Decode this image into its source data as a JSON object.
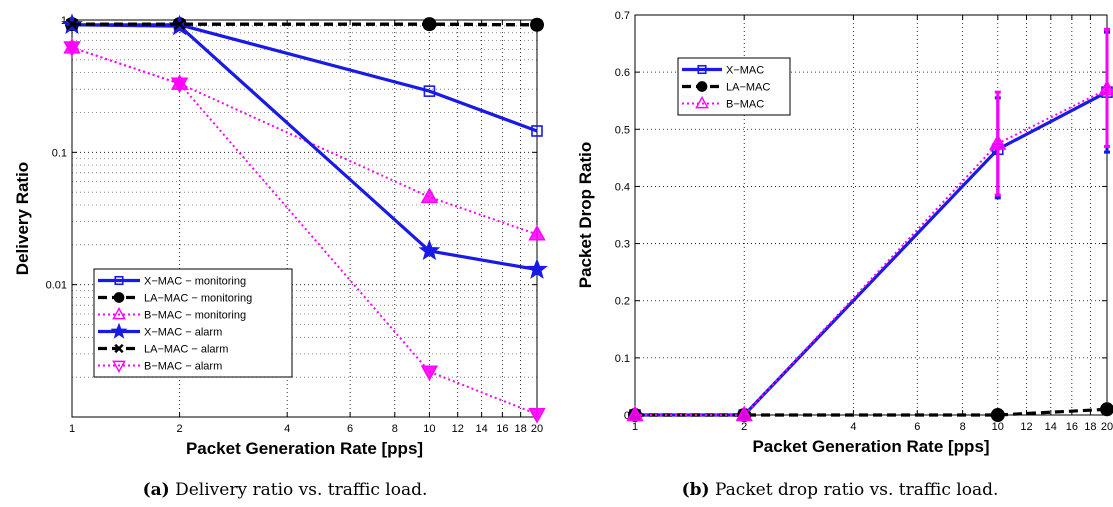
{
  "chart_data": [
    {
      "type": "line",
      "caption_label": "(a)",
      "caption_text": "Delivery ratio vs. traffic load.",
      "xlabel": "Packet Generation Rate [pps]",
      "ylabel": "Delivery Ratio",
      "xscale": "log",
      "yscale": "log",
      "xlim": [
        1,
        20
      ],
      "ylim": [
        0.001,
        1
      ],
      "grid": true,
      "legend_position": "bottom-left",
      "xticks": [
        1,
        2,
        4,
        6,
        8,
        10,
        12,
        14,
        16,
        18,
        20
      ],
      "xticklabels": [
        "1",
        "2",
        "4",
        "6",
        "8",
        "10",
        "12",
        "14",
        "16",
        "18",
        "20"
      ],
      "yticks": [
        1,
        0.1,
        0.01
      ],
      "yticklabels": [
        "1",
        "0.1",
        "0.01"
      ],
      "series": [
        {
          "name": "X−MAC − monitoring",
          "x": [
            1,
            2,
            10,
            20
          ],
          "y": [
            0.92,
            0.92,
            0.29,
            0.145
          ],
          "color": "#1a1ae6",
          "style": "solid",
          "marker": "square"
        },
        {
          "name": "LA−MAC − monitoring",
          "x": [
            1,
            2,
            10,
            20
          ],
          "y": [
            0.93,
            0.93,
            0.93,
            0.92
          ],
          "color": "#000000",
          "style": "dashed",
          "marker": "circle"
        },
        {
          "name": "B−MAC − monitoring",
          "x": [
            1,
            2,
            10,
            20
          ],
          "y": [
            0.62,
            0.33,
            0.046,
            0.024
          ],
          "color": "#ff00ff",
          "style": "dotted",
          "marker": "triangle-up"
        },
        {
          "name": "X−MAC − alarm",
          "x": [
            1,
            2,
            10,
            20
          ],
          "y": [
            0.92,
            0.9,
            0.018,
            0.013
          ],
          "color": "#1a1ae6",
          "style": "solid",
          "marker": "star"
        },
        {
          "name": "LA−MAC − alarm",
          "x": [
            1,
            2,
            10,
            20
          ],
          "y": [
            0.93,
            0.93,
            0.93,
            0.92
          ],
          "color": "#000000",
          "style": "dashed",
          "marker": "x"
        },
        {
          "name": "B−MAC − alarm",
          "x": [
            1,
            2,
            10,
            20
          ],
          "y": [
            0.62,
            0.33,
            0.0022,
            0.00105
          ],
          "color": "#ff00ff",
          "style": "dotted",
          "marker": "triangle-down"
        }
      ]
    },
    {
      "type": "line",
      "caption_label": "(b)",
      "caption_text": "Packet drop ratio vs. traffic load.",
      "xlabel": "Packet Generation Rate [pps]",
      "ylabel": "Packet Drop Ratio",
      "xscale": "log",
      "yscale": "linear",
      "xlim": [
        1,
        20
      ],
      "ylim": [
        0,
        0.7
      ],
      "grid": true,
      "legend_position": "top-left",
      "xticks": [
        1,
        2,
        4,
        6,
        8,
        10,
        12,
        14,
        16,
        18,
        20
      ],
      "xticklabels": [
        "1",
        "2",
        "4",
        "6",
        "8",
        "10",
        "12",
        "14",
        "16",
        "18",
        "20"
      ],
      "yticks": [
        0,
        0.1,
        0.2,
        0.3,
        0.4,
        0.5,
        0.6,
        0.7
      ],
      "yticklabels": [
        "0",
        "0.1",
        "0.2",
        "0.3",
        "0.4",
        "0.5",
        "0.6",
        "0.7"
      ],
      "series": [
        {
          "name": "X−MAC",
          "x": [
            1,
            2,
            10,
            20
          ],
          "y": [
            0,
            0,
            0.465,
            0.565
          ],
          "err_low": [
            0,
            0,
            0.38,
            0.46
          ],
          "err_high": [
            0,
            0,
            0.555,
            0.67
          ],
          "color": "#1a1ae6",
          "style": "solid",
          "marker": "square"
        },
        {
          "name": "LA−MAC",
          "x": [
            1,
            2,
            10,
            20
          ],
          "y": [
            0,
            0,
            0,
            0.01
          ],
          "color": "#000000",
          "style": "dashed",
          "marker": "circle"
        },
        {
          "name": "B−MAC",
          "x": [
            1,
            2,
            10,
            20
          ],
          "y": [
            0,
            0,
            0.475,
            0.57
          ],
          "err_low": [
            0,
            0,
            0.385,
            0.47
          ],
          "err_high": [
            0,
            0,
            0.565,
            0.675
          ],
          "color": "#ff00ff",
          "style": "dotted",
          "marker": "triangle-up"
        }
      ]
    }
  ]
}
